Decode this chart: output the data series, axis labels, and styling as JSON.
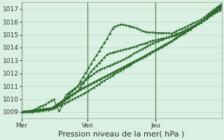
{
  "bg_color": "#daf0e3",
  "grid_color": "#b5d9c0",
  "line_color": "#2d6a2d",
  "marker_color": "#2d6a2d",
  "xlabel": "Pression niveau de la mer( hPa )",
  "ylim": [
    1008.5,
    1017.5
  ],
  "yticks": [
    1009,
    1010,
    1011,
    1012,
    1013,
    1014,
    1015,
    1016,
    1017
  ],
  "day_labels": [
    "Mer",
    "Ven",
    "Jeu"
  ],
  "day_positions": [
    0,
    0.33,
    0.67
  ],
  "xlabel_fontsize": 8,
  "tick_fontsize": 6.5
}
